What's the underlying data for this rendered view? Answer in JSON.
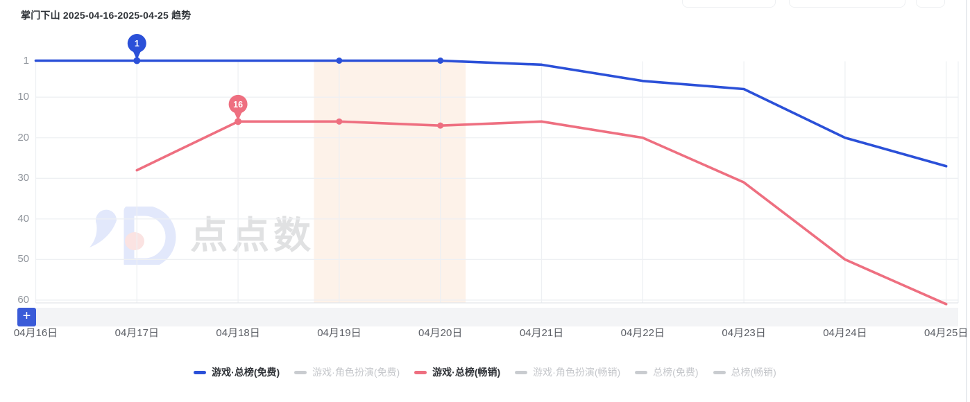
{
  "header": {
    "title": "掌门下山 2025-04-16-2025-04-25 趋势"
  },
  "watermark": {
    "logo": "diandian-logo",
    "brand_text": "点点数据"
  },
  "toolbar": {
    "add_button_label": "+"
  },
  "colors": {
    "accent_blue": "#2b50d8",
    "accent_red": "#ee6f80",
    "inactive_gray": "#c9ccd0",
    "highlight_band": "#fdf2e9",
    "plus_button": "#3a5bd8",
    "gridline": "#eef0f3",
    "axis_line": "#e3e6ea"
  },
  "chart_data": {
    "type": "line",
    "title": "掌门下山 2025-04-16-2025-04-25 趋势",
    "x_categories": [
      "04月16日",
      "04月17日",
      "04月18日",
      "04月19日",
      "04月20日",
      "04月21日",
      "04月22日",
      "04月23日",
      "04月24日",
      "04月25日"
    ],
    "y_axis": {
      "ticks": [
        1,
        10,
        20,
        30,
        40,
        50,
        60
      ],
      "inverted": true,
      "min": 1,
      "max": 62,
      "meaning": "ranking (1 = top)"
    },
    "legend_position": "bottom",
    "grid": true,
    "series": [
      {
        "name": "游戏·总榜(免费)",
        "color": "#2b50d8",
        "active": true,
        "values": [
          1,
          1,
          1,
          1,
          1,
          2,
          6,
          8,
          20,
          27
        ],
        "dot_indices": [
          3,
          4
        ],
        "pin": {
          "index": 1,
          "label": "1"
        }
      },
      {
        "name": "游戏·角色扮演(免费)",
        "color": "#c9ccd0",
        "active": false,
        "values": []
      },
      {
        "name": "游戏·总榜(畅销)",
        "color": "#ee6f80",
        "active": true,
        "values": [
          null,
          28,
          16,
          16,
          17,
          16,
          20,
          31,
          50,
          61
        ],
        "dot_indices": [
          3,
          4
        ],
        "pin": {
          "index": 2,
          "label": "16"
        }
      },
      {
        "name": "游戏·角色扮演(畅销)",
        "color": "#c9ccd0",
        "active": false,
        "values": []
      },
      {
        "name": "总榜(免费)",
        "color": "#c9ccd0",
        "active": false,
        "values": []
      },
      {
        "name": "总榜(畅销)",
        "color": "#c9ccd0",
        "active": false,
        "values": []
      }
    ],
    "highlight_band": {
      "start_index": 3,
      "end_index": 4,
      "pad_days": 0.25,
      "color": "#fdf2e9"
    }
  }
}
